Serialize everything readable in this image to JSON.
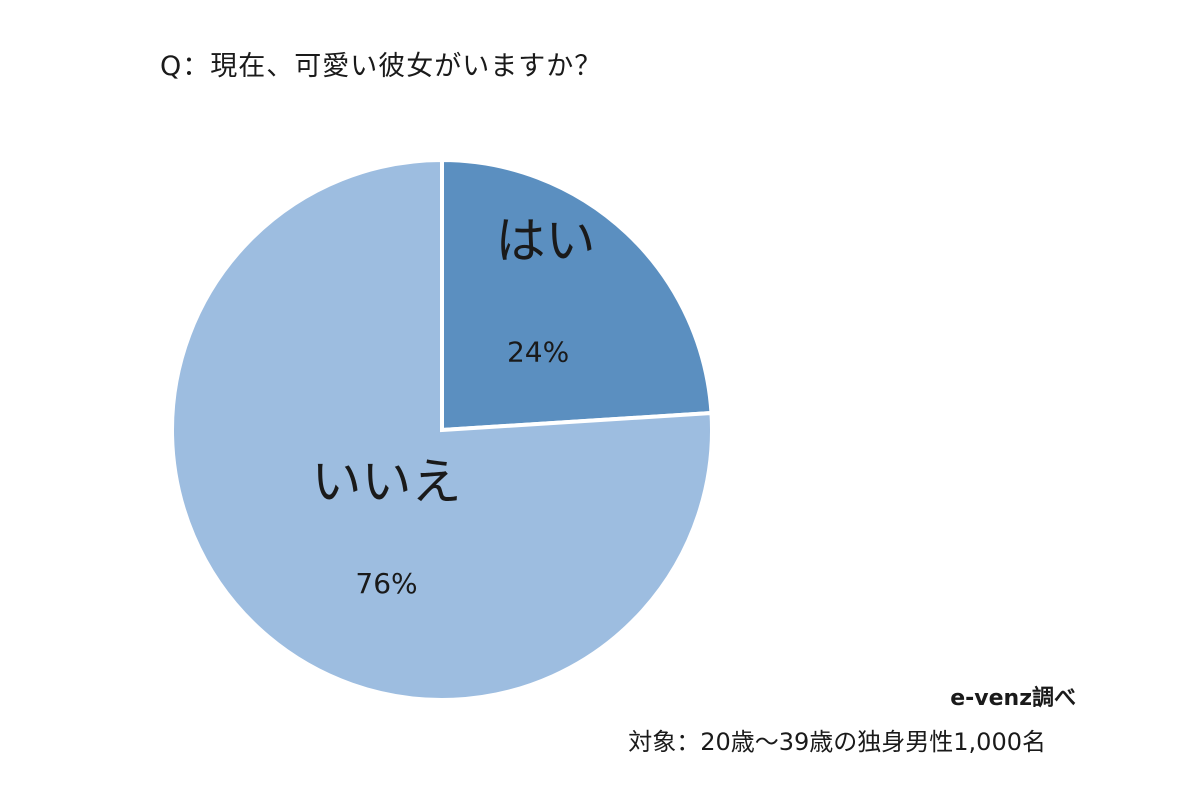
{
  "question": "Q：現在、可愛い彼女がいますか？",
  "credit": "e-venz調べ",
  "note": "対象：20歳〜39歳の独身男性1,000名",
  "chart_data": {
    "type": "pie",
    "start_angle_deg": 0,
    "direction": "clockwise",
    "slices": [
      {
        "label": "はい",
        "value": 24,
        "value_label": "24%",
        "color": "#5b8fc0"
      },
      {
        "label": "いいえ",
        "value": 76,
        "value_label": "76%",
        "color": "#9dbde0"
      }
    ],
    "legend": "none",
    "title": "Q：現在、可愛い彼女がいますか？"
  }
}
